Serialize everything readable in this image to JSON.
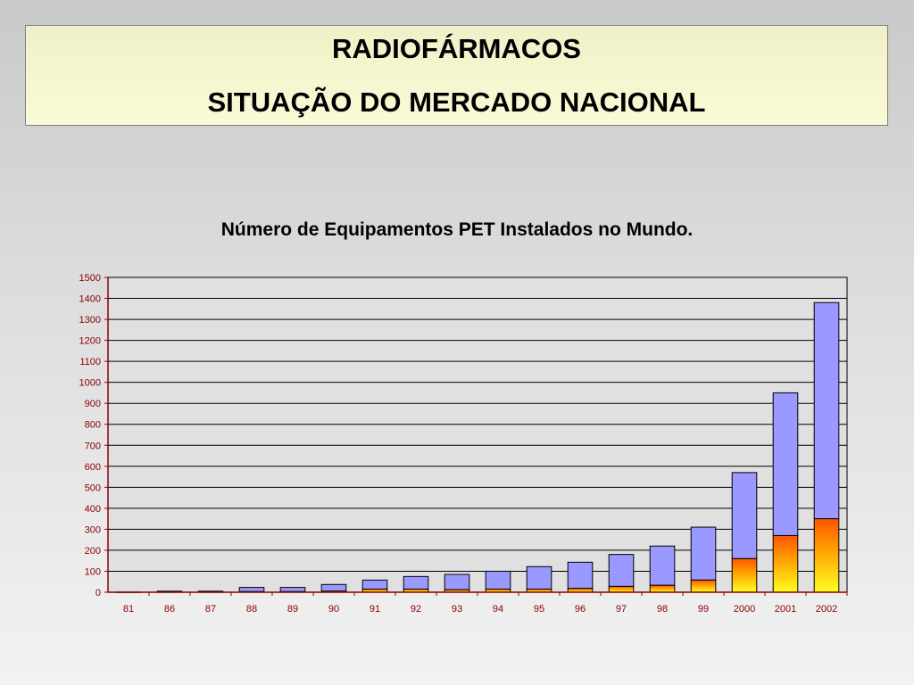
{
  "header": {
    "line1": "RADIOFÁRMACOS",
    "line2": "SITUAÇÃO DO MERCADO NACIONAL"
  },
  "chart_data": {
    "type": "bar",
    "stacked": true,
    "title": "Número de Equipamentos PET Instalados no Mundo.",
    "categories": [
      "81",
      "86",
      "87",
      "88",
      "89",
      "90",
      "91",
      "92",
      "93",
      "94",
      "95",
      "96",
      "97",
      "98",
      "99",
      "2000",
      "2001",
      "2002"
    ],
    "series": [
      {
        "values": [
          1,
          2,
          2,
          3,
          3,
          5,
          15,
          15,
          12,
          15,
          15,
          18,
          28,
          33,
          58,
          160,
          270,
          350
        ],
        "color": "#ff8800"
      },
      {
        "values": [
          0,
          3,
          3,
          20,
          20,
          32,
          43,
          60,
          73,
          85,
          107,
          125,
          152,
          187,
          252,
          410,
          680,
          1030
        ],
        "color": "#9999ff"
      }
    ],
    "ylim": [
      0,
      1500
    ],
    "yticks": [
      0,
      100,
      200,
      300,
      400,
      500,
      600,
      700,
      800,
      900,
      1000,
      1100,
      1200,
      1300,
      1400,
      1500
    ],
    "grid": true,
    "plot_background": "#e0e0e0",
    "axis_label_color": "#8b0000"
  }
}
